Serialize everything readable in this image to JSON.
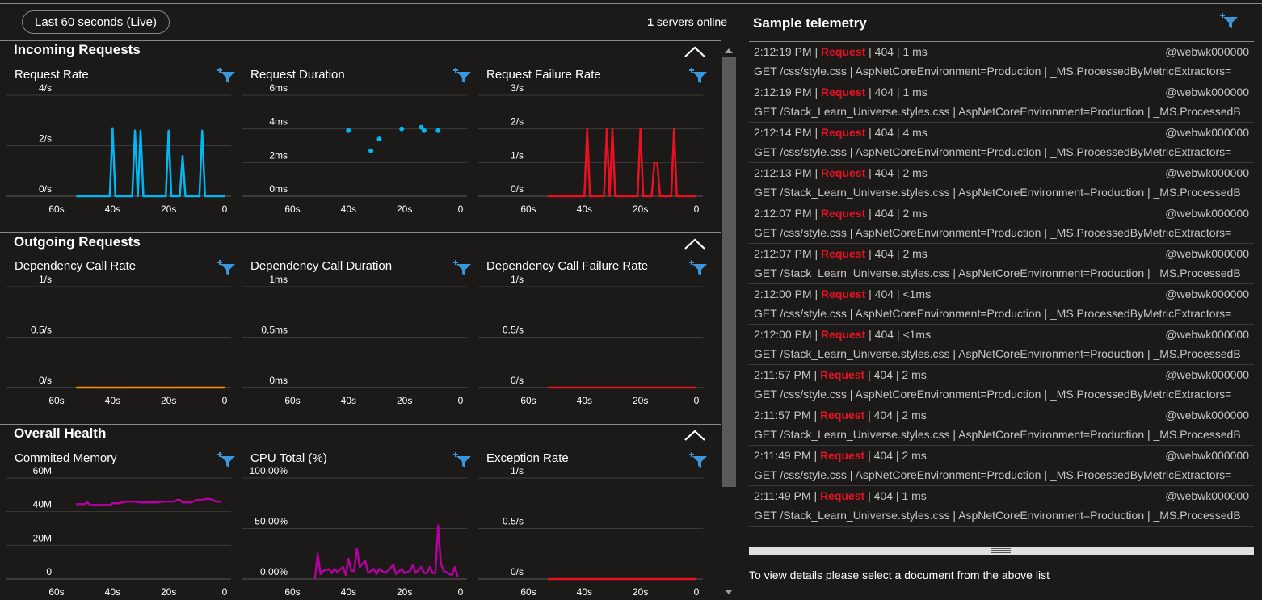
{
  "header": {
    "live_range": "Last 60 seconds (Live)",
    "servers_count": "1",
    "servers_label": "servers online"
  },
  "colors": {
    "accent_blue": "#00b7f1",
    "failure_red": "#e81123",
    "dependency_orange": "#ff8c00",
    "memory_purple": "#b4009e",
    "filter_icon_blue": "#3a96dd"
  },
  "sections": [
    {
      "title": "Incoming Requests",
      "charts": [
        {
          "title": "Request Rate",
          "icon": "filter-add-icon"
        },
        {
          "title": "Request Duration",
          "icon": "filter-add-icon"
        },
        {
          "title": "Request Failure Rate",
          "icon": "filter-add-icon"
        }
      ]
    },
    {
      "title": "Outgoing Requests",
      "charts": [
        {
          "title": "Dependency Call Rate",
          "icon": "filter-add-icon"
        },
        {
          "title": "Dependency Call Duration",
          "icon": "filter-add-icon"
        },
        {
          "title": "Dependency Call Failure Rate",
          "icon": "filter-add-icon"
        }
      ]
    },
    {
      "title": "Overall Health",
      "charts": [
        {
          "title": "Commited Memory",
          "icon": "filter-add-icon"
        },
        {
          "title": "CPU Total (%)",
          "icon": "filter-add-icon"
        },
        {
          "title": "Exception Rate",
          "icon": "filter-add-icon"
        }
      ]
    }
  ],
  "chart_data": [
    {
      "type": "line",
      "title": "Request Rate",
      "color": "#00b7f1",
      "y_ticks": [
        "4/s",
        "2/s",
        "0/s"
      ],
      "ylim": [
        0,
        4
      ],
      "x_ticks": [
        "60s",
        "40s",
        "20s",
        "0"
      ],
      "xlim": [
        60,
        0
      ],
      "x": [
        53,
        42,
        41,
        40,
        39,
        38,
        33,
        32,
        31,
        30,
        29,
        28,
        27,
        26,
        21,
        20,
        19,
        17,
        16,
        15,
        14,
        13,
        9,
        8,
        7,
        6,
        5,
        0
      ],
      "y": [
        0,
        0,
        0,
        2.7,
        0,
        0,
        0,
        2.6,
        0,
        2.6,
        0,
        0,
        0,
        0,
        0,
        2.6,
        0,
        0,
        0,
        1.6,
        0,
        0,
        0,
        2.6,
        0,
        0,
        0,
        0
      ]
    },
    {
      "type": "scatter",
      "title": "Request Duration",
      "color": "#00b7f1",
      "y_ticks": [
        "6ms",
        "4ms",
        "2ms",
        "0ms"
      ],
      "ylim": [
        0,
        6
      ],
      "x_ticks": [
        "60s",
        "40s",
        "20s",
        "0"
      ],
      "xlim": [
        60,
        0
      ],
      "x": [
        40,
        32,
        29,
        21,
        14,
        13,
        8
      ],
      "y": [
        3.9,
        2.7,
        3.4,
        4.0,
        4.1,
        3.9,
        3.9
      ]
    },
    {
      "type": "line",
      "title": "Request Failure Rate",
      "color": "#e81123",
      "y_ticks": [
        "3/s",
        "2/s",
        "1/s",
        "0/s"
      ],
      "ylim": [
        0,
        3
      ],
      "x_ticks": [
        "60s",
        "40s",
        "20s",
        "0"
      ],
      "xlim": [
        60,
        0
      ],
      "x": [
        53,
        40,
        39,
        38,
        33,
        32,
        31,
        30,
        29,
        28,
        27,
        26,
        21,
        20,
        19,
        17,
        16,
        15,
        14,
        13,
        9,
        8,
        7,
        6,
        5,
        0
      ],
      "y": [
        0,
        0,
        2,
        0,
        0,
        2,
        0,
        2,
        0,
        0,
        0,
        0,
        0,
        2,
        0,
        0,
        0,
        1,
        1,
        0,
        0,
        2,
        0,
        0,
        0,
        0
      ]
    },
    {
      "type": "line",
      "title": "Dependency Call Rate",
      "color": "#ff8c00",
      "y_ticks": [
        "1/s",
        "0.5/s",
        "0/s"
      ],
      "ylim": [
        0,
        1
      ],
      "x_ticks": [
        "60s",
        "40s",
        "20s",
        "0"
      ],
      "xlim": [
        60,
        0
      ],
      "x": [
        53,
        0
      ],
      "y": [
        0,
        0
      ]
    },
    {
      "type": "line",
      "title": "Dependency Call Duration",
      "color": "#00b7f1",
      "y_ticks": [
        "1ms",
        "0.5ms",
        "0ms"
      ],
      "ylim": [
        0,
        1
      ],
      "x_ticks": [
        "60s",
        "40s",
        "20s",
        "0"
      ],
      "xlim": [
        60,
        0
      ],
      "x": [],
      "y": []
    },
    {
      "type": "line",
      "title": "Dependency Call Failure Rate",
      "color": "#e81123",
      "y_ticks": [
        "1/s",
        "0.5/s",
        "0/s"
      ],
      "ylim": [
        0,
        1
      ],
      "x_ticks": [
        "60s",
        "40s",
        "20s",
        "0"
      ],
      "xlim": [
        60,
        0
      ],
      "x": [
        53,
        0
      ],
      "y": [
        0,
        0
      ]
    },
    {
      "type": "line",
      "title": "Commited Memory",
      "color": "#b4009e",
      "y_ticks": [
        "60M",
        "40M",
        "20M",
        "0"
      ],
      "ylim": [
        0,
        60
      ],
      "x_ticks": [
        "60s",
        "40s",
        "20s",
        "0"
      ],
      "xlim": [
        60,
        0
      ],
      "x": [
        53,
        50,
        49,
        48,
        45,
        41,
        40,
        38,
        35,
        32,
        30,
        27,
        24,
        22,
        20,
        18,
        17,
        16,
        15,
        14,
        12,
        10,
        8,
        7,
        5,
        3,
        1
      ],
      "y": [
        44.5,
        44.5,
        45.5,
        44,
        44,
        44,
        45,
        45,
        46,
        46,
        45.5,
        45.5,
        45.5,
        46,
        46,
        46,
        47,
        47,
        45.5,
        45.5,
        45.5,
        47,
        47,
        47.5,
        47.5,
        46,
        46
      ]
    },
    {
      "type": "line",
      "title": "CPU Total (%)",
      "color": "#b4009e",
      "y_ticks": [
        "100.00%",
        "50.00%",
        "0.00%"
      ],
      "ylim": [
        0,
        100
      ],
      "x_ticks": [
        "60s",
        "40s",
        "20s",
        "0"
      ],
      "xlim": [
        60,
        0
      ],
      "x": [
        52,
        51,
        50,
        49,
        47,
        46,
        45,
        44,
        42,
        41,
        40,
        39,
        38,
        37,
        36,
        34,
        33,
        32,
        31,
        30,
        29,
        27,
        26,
        24,
        23,
        21,
        20,
        18,
        17,
        16,
        14,
        13,
        12,
        11,
        10,
        9,
        8,
        7,
        6,
        4,
        3,
        2,
        1
      ],
      "y": [
        0,
        25,
        5,
        8,
        10,
        6,
        10,
        7,
        12,
        4,
        20,
        8,
        8,
        30,
        12,
        18,
        6,
        8,
        10,
        5,
        10,
        6,
        8,
        14,
        5,
        10,
        6,
        8,
        14,
        6,
        12,
        6,
        6,
        12,
        6,
        6,
        53,
        15,
        8,
        5,
        4,
        12,
        2
      ]
    },
    {
      "type": "line",
      "title": "Exception Rate",
      "color": "#e81123",
      "y_ticks": [
        "1/s",
        "0.5/s",
        "0/s"
      ],
      "ylim": [
        0,
        1
      ],
      "x_ticks": [
        "60s",
        "40s",
        "20s",
        "0"
      ],
      "xlim": [
        60,
        0
      ],
      "x": [
        53,
        0
      ],
      "y": [
        0,
        0
      ]
    }
  ],
  "telemetry": {
    "title": "Sample telemetry",
    "icon": "filter-add-icon",
    "rows": [
      {
        "time": "2:12:19 PM |",
        "type": "Request",
        "status": "| 404 | 1 ms",
        "host": "@webwk000000",
        "detail": "GET /css/style.css | AspNetCoreEnvironment=Production | _MS.ProcessedByMetricExtractors="
      },
      {
        "time": "2:12:19 PM |",
        "type": "Request",
        "status": "| 404 | 1 ms",
        "host": "@webwk000000",
        "detail": "GET /Stack_Learn_Universe.styles.css | AspNetCoreEnvironment=Production | _MS.ProcessedB"
      },
      {
        "time": "2:12:14 PM |",
        "type": "Request",
        "status": "| 404 | 4 ms",
        "host": "@webwk000000",
        "detail": "GET /css/style.css | AspNetCoreEnvironment=Production | _MS.ProcessedByMetricExtractors="
      },
      {
        "time": "2:12:13 PM |",
        "type": "Request",
        "status": "| 404 | 2 ms",
        "host": "@webwk000000",
        "detail": "GET /Stack_Learn_Universe.styles.css | AspNetCoreEnvironment=Production | _MS.ProcessedB"
      },
      {
        "time": "2:12:07 PM |",
        "type": "Request",
        "status": "| 404 | 2 ms",
        "host": "@webwk000000",
        "detail": "GET /css/style.css | AspNetCoreEnvironment=Production | _MS.ProcessedByMetricExtractors="
      },
      {
        "time": "2:12:07 PM |",
        "type": "Request",
        "status": "| 404 | 2 ms",
        "host": "@webwk000000",
        "detail": "GET /Stack_Learn_Universe.styles.css | AspNetCoreEnvironment=Production | _MS.ProcessedB"
      },
      {
        "time": "2:12:00 PM |",
        "type": "Request",
        "status": "| 404 | <1ms",
        "host": "@webwk000000",
        "detail": "GET /css/style.css | AspNetCoreEnvironment=Production | _MS.ProcessedByMetricExtractors="
      },
      {
        "time": "2:12:00 PM |",
        "type": "Request",
        "status": "| 404 | <1ms",
        "host": "@webwk000000",
        "detail": "GET /Stack_Learn_Universe.styles.css | AspNetCoreEnvironment=Production | _MS.ProcessedB"
      },
      {
        "time": "2:11:57 PM |",
        "type": "Request",
        "status": "| 404 | 2 ms",
        "host": "@webwk000000",
        "detail": "GET /css/style.css | AspNetCoreEnvironment=Production | _MS.ProcessedByMetricExtractors="
      },
      {
        "time": "2:11:57 PM |",
        "type": "Request",
        "status": "| 404 | 2 ms",
        "host": "@webwk000000",
        "detail": "GET /Stack_Learn_Universe.styles.css | AspNetCoreEnvironment=Production | _MS.ProcessedB"
      },
      {
        "time": "2:11:49 PM |",
        "type": "Request",
        "status": "| 404 | 2 ms",
        "host": "@webwk000000",
        "detail": "GET /css/style.css | AspNetCoreEnvironment=Production | _MS.ProcessedByMetricExtractors="
      },
      {
        "time": "2:11:49 PM |",
        "type": "Request",
        "status": "| 404 | 1 ms",
        "host": "@webwk000000",
        "detail": "GET /Stack_Learn_Universe.styles.css | AspNetCoreEnvironment=Production | _MS.ProcessedB"
      }
    ],
    "detail_hint": "To view details please select a document from the above list"
  }
}
